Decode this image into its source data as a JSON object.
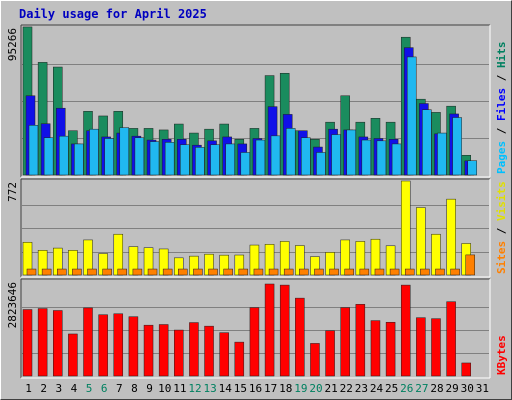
{
  "chart_data": {
    "title": "Daily usage for April 2025",
    "type": "bar",
    "days": [
      "1",
      "2",
      "3",
      "4",
      "5",
      "6",
      "7",
      "8",
      "9",
      "10",
      "11",
      "12",
      "13",
      "14",
      "15",
      "16",
      "17",
      "18",
      "19",
      "20",
      "21",
      "22",
      "23",
      "24",
      "25",
      "26",
      "27",
      "28",
      "29",
      "30",
      "31"
    ],
    "weekend_days": [
      "5",
      "6",
      "12",
      "13",
      "19",
      "20",
      "26",
      "27"
    ],
    "panels": [
      {
        "id": "requests",
        "max_label": "95266",
        "max": 95266,
        "axis_labels": [
          {
            "text": "Pages",
            "color": "#00c0ff"
          },
          {
            "text": "Files",
            "color": "#0000ff"
          },
          {
            "text": "Hits",
            "color": "#008060"
          }
        ],
        "series": [
          {
            "name": "Hits",
            "color": "#1a8c5e",
            "values": [
              95300,
              72500,
              69500,
              28500,
              41000,
              38000,
              41000,
              30000,
              30000,
              29000,
              32800,
              27000,
              29500,
              32800,
              23000,
              30000,
              64000,
              65500,
              28500,
              23000,
              34000,
              51000,
              34000,
              36500,
              34000,
              88700,
              48800,
              40300,
              44300,
              12700,
              null
            ]
          },
          {
            "name": "Files",
            "color": "#1010e8",
            "values": [
              51000,
              33000,
              43000,
              20000,
              28500,
              24500,
              27000,
              25000,
              22500,
              23000,
              23000,
              19200,
              22000,
              24500,
              20000,
              23500,
              44000,
              39000,
              28500,
              18000,
              29500,
              29000,
              24500,
              23500,
              23000,
              82000,
              46000,
              26500,
              39300,
              9100,
              null
            ]
          },
          {
            "name": "Pages",
            "color": "#20b8f0",
            "values": [
              32000,
              24000,
              25000,
              20000,
              29500,
              23500,
              30500,
              24000,
              21500,
              21000,
              19500,
              17800,
              19500,
              20000,
              14500,
              22500,
              25200,
              30000,
              24000,
              14500,
              26000,
              29000,
              22500,
              22000,
              20000,
              76000,
              42000,
              27000,
              37000,
              9200,
              null
            ]
          }
        ]
      },
      {
        "id": "sites-visits",
        "max_label": "772",
        "max": 772,
        "axis_labels": [
          {
            "text": "Sites",
            "color": "#ff8000"
          },
          {
            "text": "Visits",
            "color": "#e0e000"
          }
        ],
        "series": [
          {
            "name": "Visits",
            "color": "#ffff00",
            "values": [
              269,
              203,
              221,
              203,
              288,
              176,
              335,
              233,
              224,
              214,
              141,
              155,
              171,
              163,
              164,
              246,
              252,
              276,
              242,
              151,
              186,
              288,
              276,
              294,
              240,
              772,
              554,
              335,
              623,
              259,
              null
            ]
          },
          {
            "name": "Sites",
            "color": "#ff8000",
            "values": [
              49,
              49,
              49,
              49,
              49,
              49,
              49,
              49,
              49,
              49,
              49,
              49,
              49,
              49,
              49,
              49,
              49,
              49,
              49,
              49,
              49,
              49,
              49,
              49,
              49,
              49,
              49,
              49,
              49,
              165,
              null
            ]
          }
        ]
      },
      {
        "id": "kbytes",
        "max_label": "2823646",
        "max": 2823646,
        "axis_labels": [
          {
            "text": "KBytes",
            "color": "#ff0000"
          }
        ],
        "series": [
          {
            "name": "KBytes",
            "color": "#ff0000",
            "values": [
              2040000,
              2070000,
              2010000,
              1290000,
              2090000,
              1880000,
              1910000,
              1820000,
              1560000,
              1580000,
              1410000,
              1640000,
              1530000,
              1330000,
              1040000,
              2100000,
              2823646,
              2790000,
              2390000,
              1000000,
              1390000,
              2100000,
              2200000,
              1700000,
              1650000,
              2790000,
              1790000,
              1760000,
              2280000,
              400000,
              null
            ]
          }
        ]
      }
    ]
  }
}
